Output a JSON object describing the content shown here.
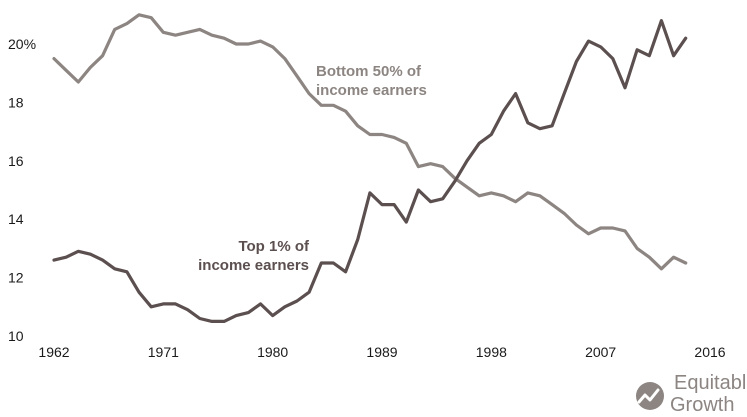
{
  "chart_data": {
    "type": "line",
    "title": "",
    "xlabel": "",
    "ylabel": "",
    "xlim": [
      1962,
      2016
    ],
    "ylim": [
      10,
      21
    ],
    "x_ticks": [
      1962,
      1971,
      1980,
      1989,
      1998,
      2007,
      2016
    ],
    "y_ticks": [
      {
        "value": 10,
        "label": "10"
      },
      {
        "value": 12,
        "label": "12"
      },
      {
        "value": 14,
        "label": "14"
      },
      {
        "value": 16,
        "label": "16"
      },
      {
        "value": 18,
        "label": "18"
      },
      {
        "value": 20,
        "label": "20%"
      }
    ],
    "grid": false,
    "x": [
      1962,
      1963,
      1964,
      1965,
      1966,
      1967,
      1968,
      1969,
      1970,
      1971,
      1972,
      1973,
      1974,
      1975,
      1976,
      1977,
      1978,
      1979,
      1980,
      1981,
      1982,
      1983,
      1984,
      1985,
      1986,
      1987,
      1988,
      1989,
      1990,
      1991,
      1992,
      1993,
      1994,
      1995,
      1996,
      1997,
      1998,
      1999,
      2000,
      2001,
      2002,
      2003,
      2004,
      2005,
      2006,
      2007,
      2008,
      2009,
      2010,
      2011,
      2012,
      2013,
      2014
    ],
    "series": [
      {
        "name": "Bottom 50% of income earners",
        "label_lines": [
          "Bottom 50% of",
          "income earners"
        ],
        "color": "#8c8582",
        "values": [
          19.5,
          19.1,
          18.7,
          19.2,
          19.6,
          20.5,
          20.7,
          21.0,
          20.9,
          20.4,
          20.3,
          20.4,
          20.5,
          20.3,
          20.2,
          20.0,
          20.0,
          20.1,
          19.9,
          19.5,
          18.9,
          18.3,
          17.9,
          17.9,
          17.7,
          17.2,
          16.9,
          16.9,
          16.8,
          16.6,
          15.8,
          15.9,
          15.8,
          15.4,
          15.1,
          14.8,
          14.9,
          14.8,
          14.6,
          14.9,
          14.8,
          14.5,
          14.2,
          13.8,
          13.5,
          13.7,
          13.7,
          13.6,
          13.0,
          12.7,
          12.3,
          12.7,
          12.5
        ]
      },
      {
        "name": "Top 1% of income earners",
        "label_lines": [
          "Top 1% of",
          "income earners"
        ],
        "color": "#5c4f4f",
        "values": [
          12.6,
          12.7,
          12.9,
          12.8,
          12.6,
          12.3,
          12.2,
          11.5,
          11.0,
          11.1,
          11.1,
          10.9,
          10.6,
          10.5,
          10.5,
          10.7,
          10.8,
          11.1,
          10.7,
          11.0,
          11.2,
          11.5,
          12.5,
          12.5,
          12.2,
          13.3,
          14.9,
          14.5,
          14.5,
          13.9,
          15.0,
          14.6,
          14.7,
          15.3,
          16.0,
          16.6,
          16.9,
          17.7,
          18.3,
          17.3,
          17.1,
          17.2,
          18.3,
          19.4,
          20.1,
          19.9,
          19.5,
          18.5,
          19.8,
          19.6,
          20.8,
          19.6,
          20.2
        ]
      }
    ]
  },
  "brand": {
    "line1": "Equitable",
    "line2": "Growth",
    "logo_icon": "trend-leaf-icon",
    "color": "#8c8582"
  }
}
